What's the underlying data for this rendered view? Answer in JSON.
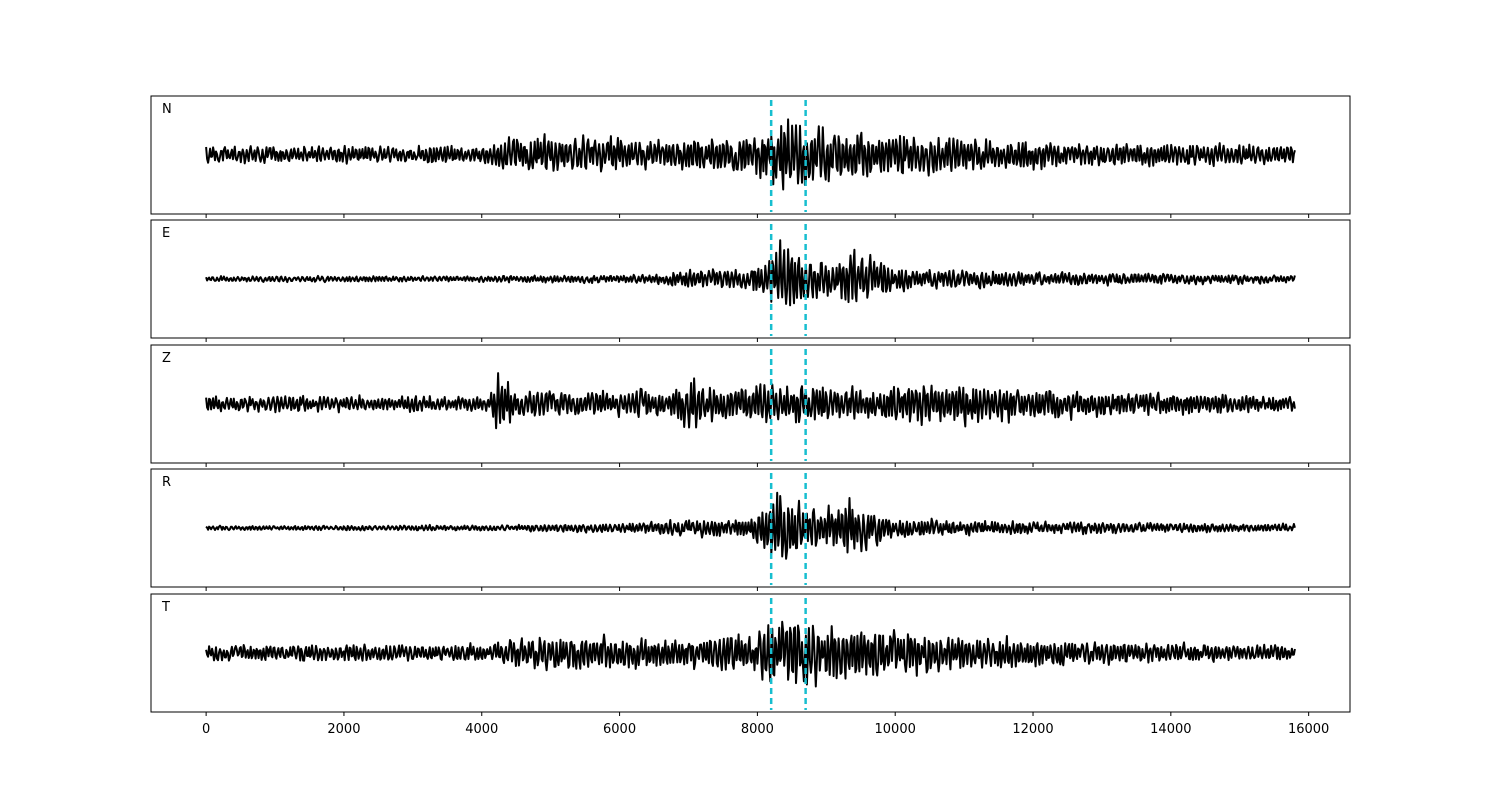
{
  "chart_data": {
    "type": "line",
    "x_range": [
      0,
      15800
    ],
    "xlim": [
      -800,
      16600
    ],
    "xticks": [
      0,
      2000,
      4000,
      6000,
      8000,
      10000,
      12000,
      14000,
      16000
    ],
    "xtick_labels": [
      "0",
      "2000",
      "4000",
      "6000",
      "8000",
      "10000",
      "12000",
      "14000",
      "16000"
    ],
    "markers": [
      8200,
      8700
    ],
    "colors": {
      "trace": "#000000",
      "marker": "#17becf"
    },
    "grid": false,
    "panels": [
      {
        "label": "N",
        "series": [
          {
            "x": 0,
            "amp": 0.22
          },
          {
            "x": 3900,
            "amp": 0.22
          },
          {
            "x": 4400,
            "amp": 0.45
          },
          {
            "x": 5600,
            "amp": 0.45
          },
          {
            "x": 6500,
            "amp": 0.35
          },
          {
            "x": 7900,
            "amp": 0.5
          },
          {
            "x": 8350,
            "amp": 1.0
          },
          {
            "x": 8800,
            "amp": 0.8
          },
          {
            "x": 9800,
            "amp": 0.6
          },
          {
            "x": 11200,
            "amp": 0.45
          },
          {
            "x": 12500,
            "amp": 0.3
          },
          {
            "x": 15800,
            "amp": 0.25
          }
        ]
      },
      {
        "label": "E",
        "series": [
          {
            "x": 0,
            "amp": 0.07
          },
          {
            "x": 4000,
            "amp": 0.08
          },
          {
            "x": 6500,
            "amp": 0.12
          },
          {
            "x": 7000,
            "amp": 0.25
          },
          {
            "x": 7900,
            "amp": 0.25
          },
          {
            "x": 8350,
            "amp": 1.0
          },
          {
            "x": 8900,
            "amp": 0.5
          },
          {
            "x": 9400,
            "amp": 0.75
          },
          {
            "x": 10200,
            "amp": 0.28
          },
          {
            "x": 12000,
            "amp": 0.18
          },
          {
            "x": 15800,
            "amp": 0.1
          }
        ]
      },
      {
        "label": "Z",
        "series": [
          {
            "x": 0,
            "amp": 0.2
          },
          {
            "x": 4100,
            "amp": 0.2
          },
          {
            "x": 4250,
            "amp": 1.0
          },
          {
            "x": 4500,
            "amp": 0.35
          },
          {
            "x": 6800,
            "amp": 0.35
          },
          {
            "x": 7000,
            "amp": 0.75
          },
          {
            "x": 7400,
            "amp": 0.4
          },
          {
            "x": 8000,
            "amp": 0.55
          },
          {
            "x": 9500,
            "amp": 0.4
          },
          {
            "x": 10400,
            "amp": 0.6
          },
          {
            "x": 12000,
            "amp": 0.4
          },
          {
            "x": 15800,
            "amp": 0.2
          }
        ]
      },
      {
        "label": "R",
        "series": [
          {
            "x": 0,
            "amp": 0.06
          },
          {
            "x": 4000,
            "amp": 0.07
          },
          {
            "x": 6500,
            "amp": 0.15
          },
          {
            "x": 7000,
            "amp": 0.22
          },
          {
            "x": 7900,
            "amp": 0.22
          },
          {
            "x": 8350,
            "amp": 1.0
          },
          {
            "x": 8900,
            "amp": 0.45
          },
          {
            "x": 9300,
            "amp": 0.7
          },
          {
            "x": 10000,
            "amp": 0.25
          },
          {
            "x": 12000,
            "amp": 0.16
          },
          {
            "x": 15800,
            "amp": 0.1
          }
        ]
      },
      {
        "label": "T",
        "series": [
          {
            "x": 0,
            "amp": 0.22
          },
          {
            "x": 4100,
            "amp": 0.22
          },
          {
            "x": 4600,
            "amp": 0.45
          },
          {
            "x": 6800,
            "amp": 0.4
          },
          {
            "x": 7900,
            "amp": 0.5
          },
          {
            "x": 8350,
            "amp": 1.0
          },
          {
            "x": 8900,
            "amp": 0.8
          },
          {
            "x": 9900,
            "amp": 0.6
          },
          {
            "x": 11500,
            "amp": 0.42
          },
          {
            "x": 12500,
            "amp": 0.3
          },
          {
            "x": 15800,
            "amp": 0.2
          }
        ]
      }
    ]
  }
}
